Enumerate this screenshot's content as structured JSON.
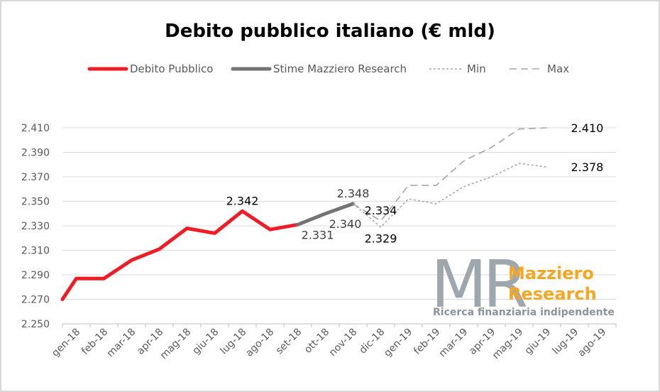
{
  "chart_data": {
    "type": "line",
    "title": "Debito pubblico italiano (€ mld)",
    "xlabel": "",
    "ylabel": "",
    "categories": [
      "gen-18",
      "feb-18",
      "mar-18",
      "apr-18",
      "mag-18",
      "giu-18",
      "lug-18",
      "ago-18",
      "set-18",
      "ott-18",
      "nov-18",
      "dic-18",
      "gen-19",
      "feb-19",
      "mar-19",
      "apr-19",
      "mag-19",
      "giu-19",
      "lug-19",
      "ago-19"
    ],
    "ylim": [
      2250,
      2410
    ],
    "yticks": [
      2250,
      2270,
      2290,
      2310,
      2330,
      2350,
      2370,
      2390,
      2410
    ],
    "ytick_labels": [
      "2.250",
      "2.270",
      "2.290",
      "2.310",
      "2.330",
      "2.350",
      "2.370",
      "2.390",
      "2.410"
    ],
    "grid": true,
    "legend_position": "top",
    "series": [
      {
        "name": "Debito Pubblico",
        "color": "#ee1c25",
        "style": "solid-thick",
        "points": [
          [
            0,
            2270
          ],
          [
            0.5,
            2287
          ],
          [
            1.5,
            2287
          ],
          [
            2.5,
            2302
          ],
          [
            3.5,
            2311
          ],
          [
            4.5,
            2328
          ],
          [
            5.5,
            2324
          ],
          [
            6.5,
            2342
          ],
          [
            7.5,
            2327
          ],
          [
            8.5,
            2331
          ]
        ]
      },
      {
        "name": "Stime Mazziero Research",
        "color": "#737373",
        "style": "solid-thick",
        "points": [
          [
            8.5,
            2331
          ],
          [
            9.5,
            2340
          ],
          [
            10.5,
            2348
          ]
        ]
      },
      {
        "name": "Min",
        "color": "#a6a6a6",
        "style": "dotted",
        "points": [
          [
            10.5,
            2348
          ],
          [
            11.5,
            2329
          ],
          [
            12.5,
            2352
          ],
          [
            13.5,
            2348
          ],
          [
            14.5,
            2362
          ],
          [
            15.5,
            2370
          ],
          [
            16.5,
            2381
          ],
          [
            17.5,
            2378
          ]
        ]
      },
      {
        "name": "Max",
        "color": "#a6a6a6",
        "style": "dashed",
        "points": [
          [
            10.5,
            2348
          ],
          [
            11.5,
            2334
          ],
          [
            12.5,
            2363
          ],
          [
            13.5,
            2363
          ],
          [
            14.5,
            2383
          ],
          [
            15.5,
            2394
          ],
          [
            16.5,
            2409
          ],
          [
            17.5,
            2410
          ]
        ]
      }
    ],
    "annotations": [
      {
        "text": "2.342",
        "x": 6.5,
        "y": 2342,
        "tone": "dark",
        "anchor": "above"
      },
      {
        "text": "2.331",
        "x": 8.5,
        "y": 2331,
        "tone": "grey",
        "anchor": "below-right"
      },
      {
        "text": "2.348",
        "x": 10.5,
        "y": 2348,
        "tone": "grey",
        "anchor": "above"
      },
      {
        "text": "2.340",
        "x": 9.5,
        "y": 2340,
        "tone": "grey",
        "anchor": "below-right"
      },
      {
        "text": "2.334",
        "x": 11.5,
        "y": 2334,
        "tone": "dark",
        "anchor": "above"
      },
      {
        "text": "2.329",
        "x": 11.5,
        "y": 2329,
        "tone": "dark",
        "anchor": "below"
      },
      {
        "text": "2.410",
        "x": 17.5,
        "y": 2410,
        "tone": "dark",
        "anchor": "right"
      },
      {
        "text": "2.378",
        "x": 17.5,
        "y": 2378,
        "tone": "dark",
        "anchor": "right"
      }
    ]
  },
  "logo": {
    "mark": "MR",
    "name_line1": "Mazziero",
    "name_line2": "Research",
    "tagline": "Ricerca finanziaria indipendente"
  }
}
